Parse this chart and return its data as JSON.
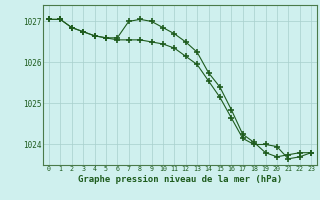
{
  "title": "Graphe pression niveau de la mer (hPa)",
  "background_color": "#cff0ee",
  "plot_background": "#cff0ee",
  "grid_color": "#a8d0cc",
  "line_color": "#1e5c1e",
  "xlim": [
    -0.5,
    23.5
  ],
  "ylim": [
    1023.5,
    1027.4
  ],
  "yticks": [
    1024,
    1025,
    1026,
    1027
  ],
  "xticks": [
    0,
    1,
    2,
    3,
    4,
    5,
    6,
    7,
    8,
    9,
    10,
    11,
    12,
    13,
    14,
    15,
    16,
    17,
    18,
    19,
    20,
    21,
    22,
    23
  ],
  "line1_x": [
    0,
    1,
    2,
    3,
    4,
    5,
    6,
    7,
    8,
    9,
    10,
    11,
    12,
    13,
    14,
    15,
    16,
    17,
    18,
    19,
    20,
    21,
    22,
    23
  ],
  "line1_y": [
    1027.05,
    1027.05,
    1026.85,
    1026.75,
    1026.65,
    1026.6,
    1026.6,
    1027.0,
    1027.05,
    1027.0,
    1026.85,
    1026.7,
    1026.5,
    1026.25,
    1025.75,
    1025.4,
    1024.85,
    1024.25,
    1024.05,
    1023.8,
    1023.7,
    1023.75,
    1023.8,
    1023.8
  ],
  "line2_x": [
    0,
    1,
    2,
    3,
    4,
    5,
    6,
    7,
    8,
    9,
    10,
    11,
    12,
    13,
    14,
    15,
    16,
    17,
    18,
    19,
    20,
    21,
    22,
    23
  ],
  "line2_y": [
    1027.05,
    1027.05,
    1026.85,
    1026.75,
    1026.65,
    1026.6,
    1026.55,
    1026.55,
    1026.55,
    1026.5,
    1026.45,
    1026.35,
    1026.15,
    1025.95,
    1025.55,
    1025.15,
    1024.65,
    1024.15,
    1024.0,
    1024.0,
    1023.95,
    1023.65,
    1023.7,
    1023.8
  ],
  "marker": "+",
  "markersize": 4,
  "markeredgewidth": 1.2,
  "linewidth": 0.8,
  "xlabel_fontsize": 6.5,
  "ylabel_fontsize": 5.5,
  "xlabel_tick_fontsize": 4.8
}
